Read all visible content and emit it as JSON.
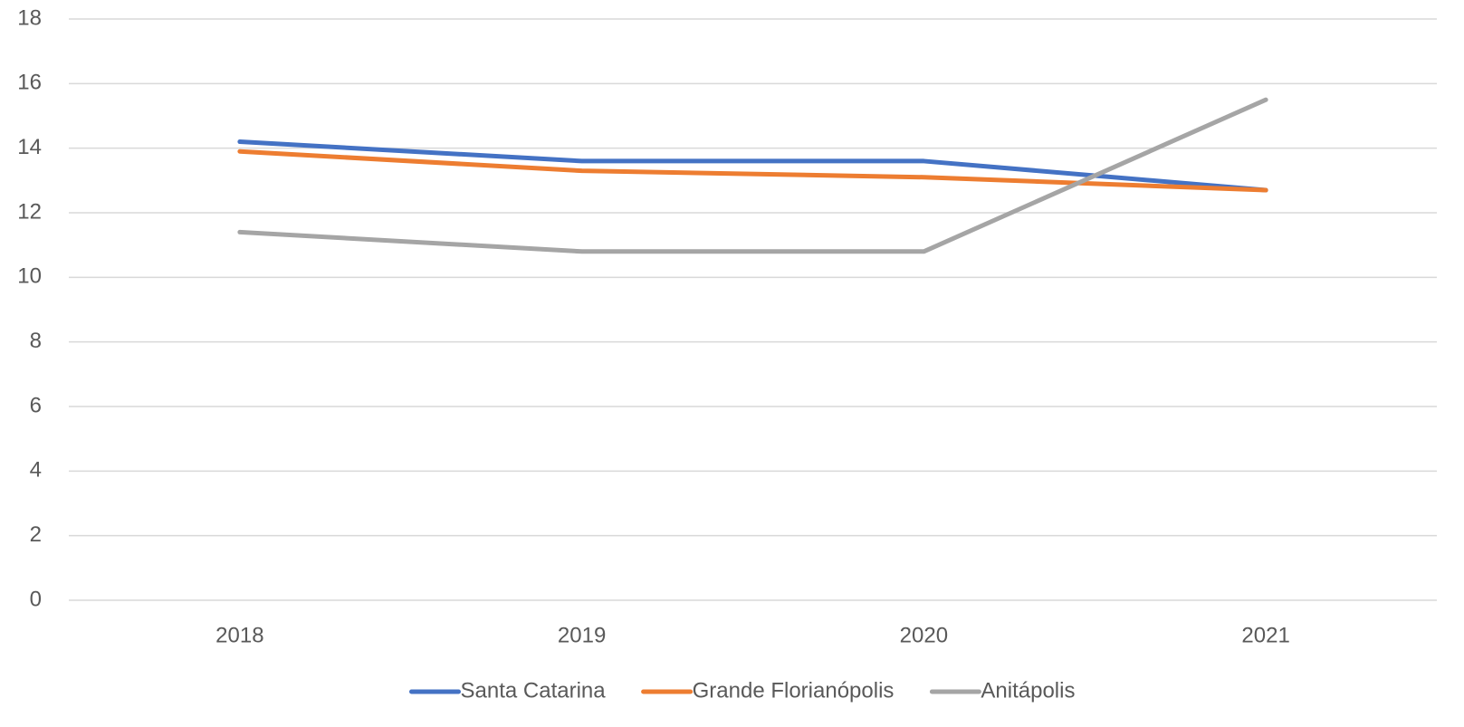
{
  "chart_data": {
    "type": "line",
    "categories": [
      "2018",
      "2019",
      "2020",
      "2021"
    ],
    "series": [
      {
        "name": "Santa Catarina",
        "color": "#4472c4",
        "values": [
          14.2,
          13.6,
          13.6,
          12.7
        ]
      },
      {
        "name": "Grande Florianópolis",
        "color": "#ed7d31",
        "values": [
          13.9,
          13.3,
          13.1,
          12.7
        ]
      },
      {
        "name": "Anitápolis",
        "color": "#a5a5a5",
        "values": [
          11.4,
          10.8,
          10.8,
          15.5
        ]
      }
    ],
    "ylim": [
      0,
      18
    ],
    "yticks": [
      0,
      2,
      4,
      6,
      8,
      10,
      12,
      14,
      16,
      18
    ],
    "grid": true,
    "legend": "bottom"
  }
}
